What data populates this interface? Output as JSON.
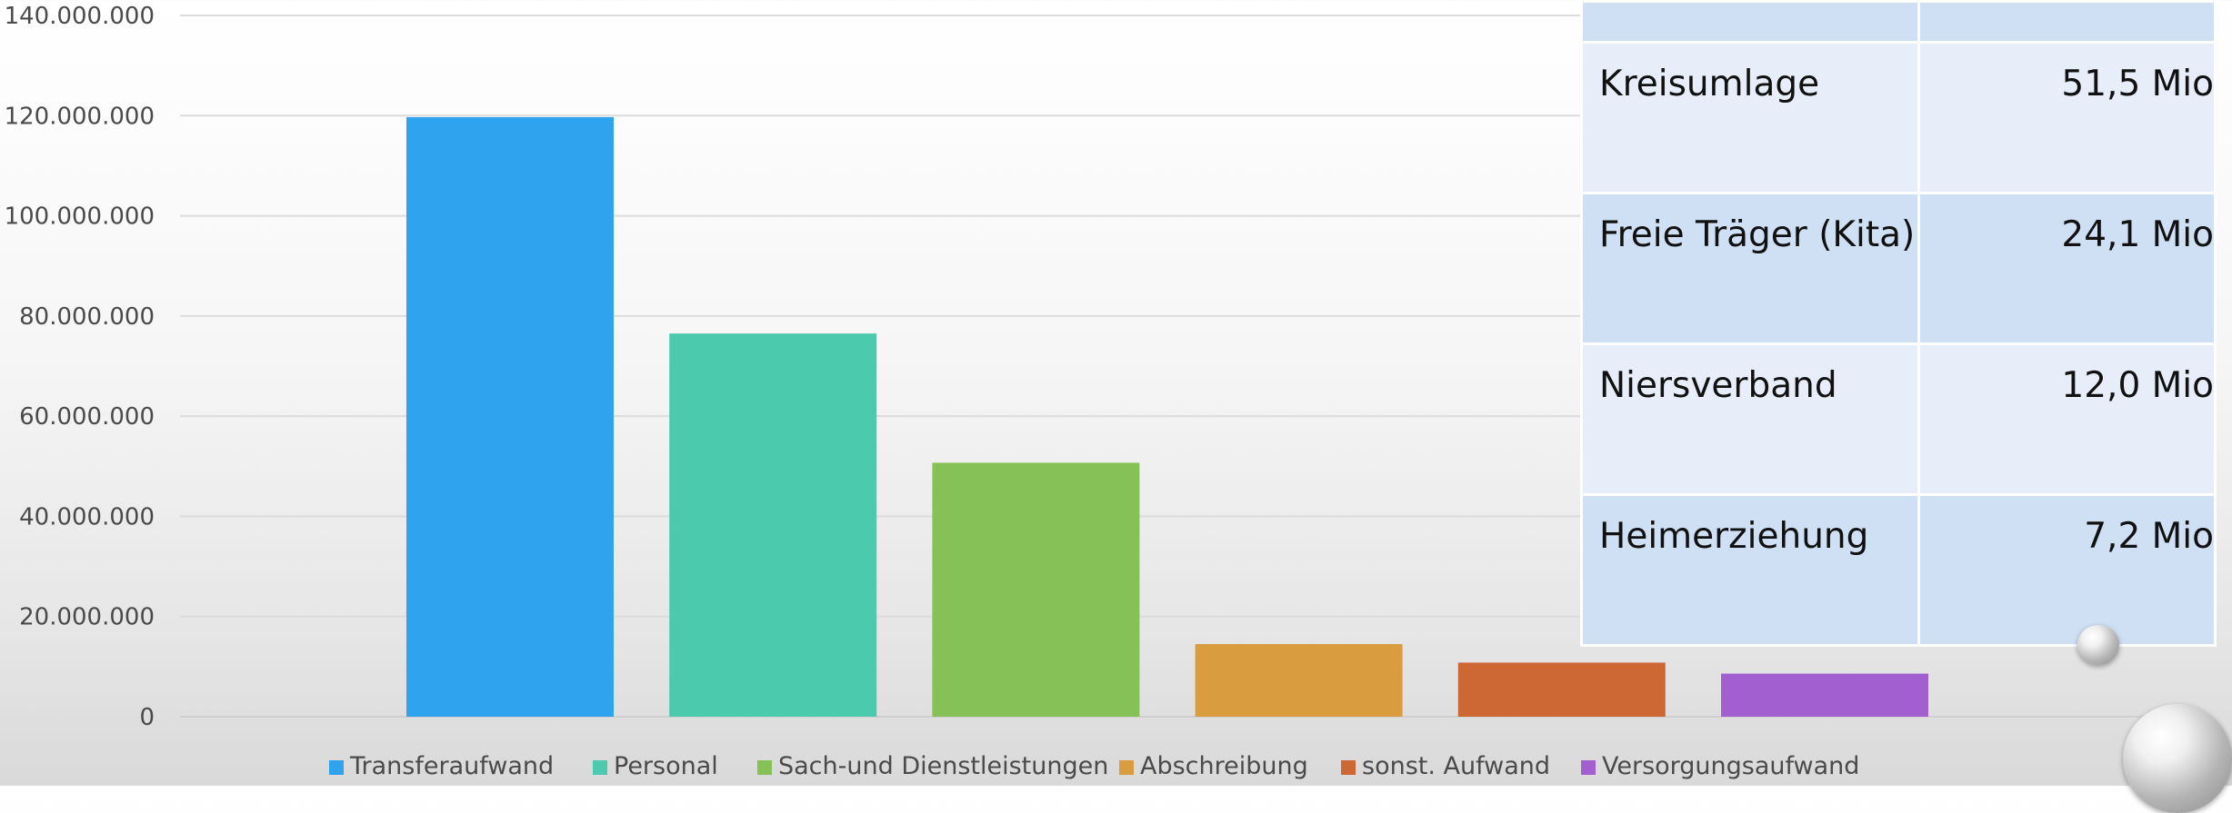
{
  "chart_data": {
    "type": "bar",
    "title": "",
    "xlabel": "",
    "ylabel": "",
    "ylim": [
      0,
      140000000
    ],
    "yticks": [
      0,
      20000000,
      40000000,
      60000000,
      80000000,
      100000000,
      120000000,
      140000000
    ],
    "ytick_labels": [
      "0",
      "20.000.000",
      "40.000.000",
      "60.000.000",
      "80.000.000",
      "100.000.000",
      "120.000.000",
      "140.000.000"
    ],
    "grid": true,
    "legend_position": "bottom",
    "categories": [
      "Transferaufwand",
      "Personal",
      "Sach-und Dienstleistungen",
      "Abschreibung",
      "sonst. Aufwand",
      "Versorgungsaufwand"
    ],
    "values": [
      119700000,
      76500000,
      50700000,
      14500000,
      10800000,
      8600000
    ],
    "colors": [
      "#2fa3ee",
      "#4bcaad",
      "#86c157",
      "#d99c3f",
      "#cd6733",
      "#a25fcf"
    ]
  },
  "table": {
    "rows": [
      {
        "name": "",
        "value": ""
      },
      {
        "name": "Kreisumlage",
        "value": "51,5 Mio"
      },
      {
        "name": "Freie Träger (Kita)",
        "value": "24,1 Mio"
      },
      {
        "name": "Niersverband",
        "value": "12,0 Mio"
      },
      {
        "name": "Heimerziehung",
        "value": "7,2 Mio"
      }
    ]
  },
  "decor": {
    "bubble_icon": "glass-bubble"
  }
}
